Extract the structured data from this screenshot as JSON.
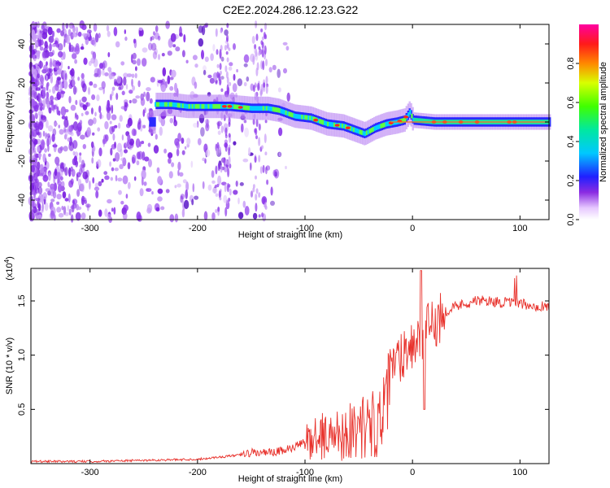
{
  "title": "C2E2.2024.286.12.23.G22",
  "chart_data": [
    {
      "type": "heatmap",
      "xlabel": "Height of straight line (km)",
      "ylabel": "Frequency (Hz)",
      "xlim": [
        -355,
        127
      ],
      "ylim": [
        -50,
        50
      ],
      "xticks": [
        -300,
        -200,
        -100,
        0,
        100
      ],
      "yticks": [
        -40,
        -20,
        0,
        20,
        40
      ],
      "colorbar": {
        "label": "Normalized spectral amplitude",
        "range": [
          0,
          1
        ],
        "ticks": [
          "0.0",
          "0.2",
          "0.4",
          "0.6",
          "0.8"
        ]
      },
      "ridge": {
        "x": [
          -240,
          -225,
          -210,
          -190,
          -170,
          -150,
          -135,
          -125,
          -110,
          -95,
          -80,
          -65,
          -55,
          -45,
          -35,
          -25,
          -15,
          -8,
          -3,
          0,
          20,
          60,
          100,
          127
        ],
        "freq": [
          9,
          9,
          8,
          8,
          8,
          7,
          7,
          6,
          3,
          2,
          -1,
          -2,
          -4,
          -6,
          -3,
          -1,
          0,
          1,
          5,
          1,
          0,
          0,
          0,
          0
        ]
      },
      "grid": false
    },
    {
      "type": "line",
      "xlabel": "Height of straight line (km)",
      "ylabel": "SNR (10 * v/v)",
      "y_multiplier_label": "(x10",
      "y_multiplier_exp": "4",
      "xlim": [
        -355,
        127
      ],
      "ylim": [
        0,
        1.8
      ],
      "xticks": [
        -300,
        -200,
        -100,
        0,
        100
      ],
      "yticks": [
        0.5,
        1.0,
        1.5
      ],
      "ytick_labels": [
        "0.5",
        "1.0",
        "1.5"
      ],
      "series": [
        {
          "color": "#e8322c",
          "x": [
            -355,
            -300,
            -250,
            -200,
            -180,
            -160,
            -150,
            -140,
            -130,
            -120,
            -110,
            -100,
            -90,
            -80,
            -70,
            -60,
            -50,
            -40,
            -30,
            -25,
            -20,
            -15,
            -10,
            -5,
            0,
            10,
            20,
            30,
            40,
            50,
            60,
            70,
            80,
            90,
            100,
            110,
            127
          ],
          "y": [
            0.02,
            0.02,
            0.03,
            0.04,
            0.06,
            0.08,
            0.1,
            0.1,
            0.1,
            0.12,
            0.15,
            0.2,
            0.25,
            0.25,
            0.27,
            0.3,
            0.33,
            0.35,
            0.4,
            0.5,
            0.85,
            0.95,
            1.0,
            1.1,
            1.1,
            1.18,
            1.3,
            1.4,
            1.45,
            1.48,
            1.5,
            1.5,
            1.49,
            1.48,
            1.47,
            1.46,
            1.45
          ]
        }
      ]
    }
  ]
}
